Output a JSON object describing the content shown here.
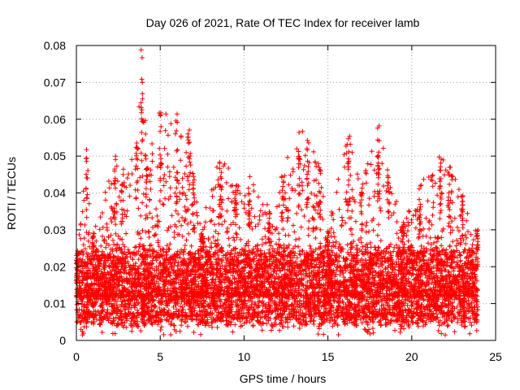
{
  "chart_data": {
    "type": "scatter",
    "title": "Day 026 of 2021, Rate Of TEC Index for receiver lamb",
    "xlabel": "GPS time / hours",
    "ylabel": "ROTI / TECUs",
    "xlim": [
      0,
      25
    ],
    "ylim": [
      0,
      0.08
    ],
    "x_ticks": [
      0,
      5,
      10,
      15,
      20,
      25
    ],
    "y_ticks": [
      0,
      0.01,
      0.02,
      0.03,
      0.04,
      0.05,
      0.06,
      0.07,
      0.08
    ],
    "x_tick_labels": [
      "0",
      "5",
      "10",
      "15",
      "20",
      "25"
    ],
    "y_tick_labels": [
      "0",
      "0.01",
      "0.02",
      "0.03",
      "0.04",
      "0.05",
      "0.06",
      "0.07",
      "0.08"
    ],
    "grid": true,
    "marker": "+",
    "color": "#ff0000",
    "series": [
      {
        "name": "ROTI",
        "x_range": [
          0,
          23.95
        ],
        "baseline_range": [
          0.005,
          0.025
        ],
        "envelope": [
          {
            "x": 0.0,
            "y": 0.022
          },
          {
            "x": 0.6,
            "y": 0.052
          },
          {
            "x": 1.0,
            "y": 0.03
          },
          {
            "x": 2.3,
            "y": 0.05
          },
          {
            "x": 2.7,
            "y": 0.045
          },
          {
            "x": 3.6,
            "y": 0.06
          },
          {
            "x": 3.9,
            "y": 0.079
          },
          {
            "x": 4.2,
            "y": 0.052
          },
          {
            "x": 5.0,
            "y": 0.062
          },
          {
            "x": 6.0,
            "y": 0.062
          },
          {
            "x": 6.7,
            "y": 0.058
          },
          {
            "x": 7.0,
            "y": 0.048
          },
          {
            "x": 7.5,
            "y": 0.032
          },
          {
            "x": 8.6,
            "y": 0.052
          },
          {
            "x": 9.5,
            "y": 0.042
          },
          {
            "x": 10.3,
            "y": 0.046
          },
          {
            "x": 11.5,
            "y": 0.036
          },
          {
            "x": 12.3,
            "y": 0.045
          },
          {
            "x": 13.3,
            "y": 0.061
          },
          {
            "x": 13.8,
            "y": 0.055
          },
          {
            "x": 14.5,
            "y": 0.048
          },
          {
            "x": 15.0,
            "y": 0.03
          },
          {
            "x": 16.2,
            "y": 0.058
          },
          {
            "x": 17.0,
            "y": 0.042
          },
          {
            "x": 18.0,
            "y": 0.059
          },
          {
            "x": 18.6,
            "y": 0.046
          },
          {
            "x": 19.5,
            "y": 0.032
          },
          {
            "x": 20.5,
            "y": 0.043
          },
          {
            "x": 21.7,
            "y": 0.051
          },
          {
            "x": 22.2,
            "y": 0.048
          },
          {
            "x": 23.0,
            "y": 0.04
          },
          {
            "x": 23.9,
            "y": 0.03
          }
        ],
        "min_value": 0.0015
      }
    ]
  }
}
